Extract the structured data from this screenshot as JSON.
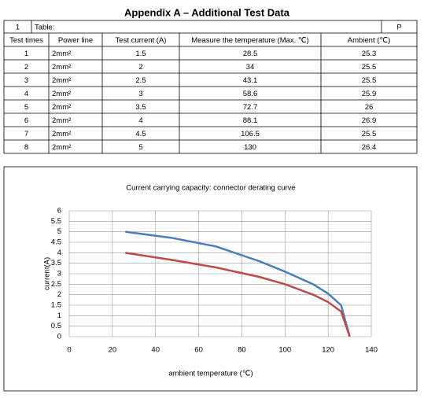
{
  "title": "Appendix A – Additional Test Data",
  "table": {
    "top_row": [
      "1",
      "Table:",
      "P"
    ],
    "header": [
      "Test times",
      "Power line",
      "Test current (A)",
      "Measure the temperature (Max. ℃)",
      "Ambient (℃)"
    ],
    "rows": [
      [
        1,
        "2mm²",
        1.5,
        28.5,
        25.3
      ],
      [
        2,
        "2mm²",
        2,
        34,
        25.5
      ],
      [
        3,
        "2mm²",
        2.5,
        43.1,
        25.5
      ],
      [
        4,
        "2mm²",
        3,
        58.6,
        25.9
      ],
      [
        5,
        "2mm²",
        3.5,
        72.7,
        26
      ],
      [
        6,
        "2mm²",
        4,
        88.1,
        26.9
      ],
      [
        7,
        "2mm²",
        4.5,
        106.5,
        25.5
      ],
      [
        8,
        "2mm²",
        5,
        130,
        26.4
      ]
    ]
  },
  "chart_data": {
    "type": "line",
    "title": "Current carrying capacity: connector derating curve",
    "x_label": "ambient temperature (℃)",
    "y_label": "current(A)",
    "x": [
      26,
      48,
      68,
      88,
      100,
      113,
      120,
      126,
      130
    ],
    "series": [
      {
        "color": "#4a7ebb",
        "values": [
          5,
          4.7,
          4.3,
          3.6,
          3.1,
          2.5,
          2.05,
          1.5,
          0
        ]
      },
      {
        "color": "#be4b48",
        "values": [
          4,
          3.65,
          3.3,
          2.85,
          2.5,
          2.0,
          1.65,
          1.2,
          0
        ]
      }
    ],
    "xlim": [
      0,
      140
    ],
    "xticks": [
      0,
      20,
      40,
      60,
      80,
      100,
      120,
      140
    ],
    "ylim": [
      0,
      6
    ],
    "yticks": [
      0,
      0.5,
      1,
      1.5,
      2,
      2.5,
      3,
      3.5,
      4,
      4.5,
      5,
      5.5,
      6
    ],
    "grid": true
  }
}
